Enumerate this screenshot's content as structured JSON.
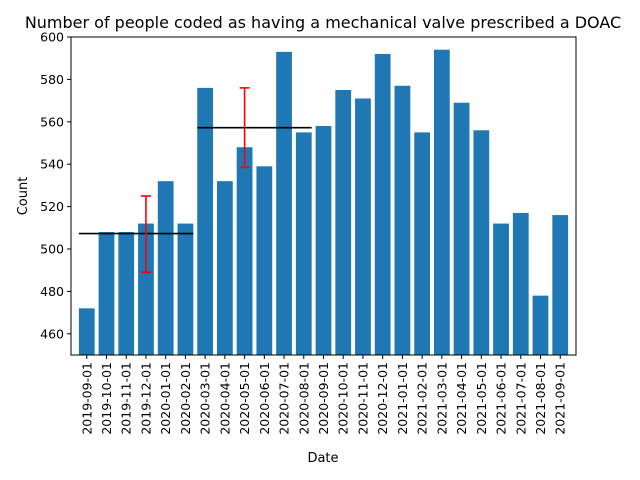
{
  "chart_data": {
    "type": "bar",
    "title": "Number of people coded as having a mechanical valve prescribed a DOAC",
    "xlabel": "Date",
    "ylabel": "Count",
    "ylim": [
      450,
      600
    ],
    "yticks": [
      460,
      480,
      500,
      520,
      540,
      560,
      580,
      600
    ],
    "bar_color": "#1f77b4",
    "categories": [
      "2019-09-01",
      "2019-10-01",
      "2019-11-01",
      "2019-12-01",
      "2020-01-01",
      "2020-02-01",
      "2020-03-01",
      "2020-04-01",
      "2020-05-01",
      "2020-06-01",
      "2020-07-01",
      "2020-08-01",
      "2020-09-01",
      "2020-10-01",
      "2020-11-01",
      "2020-12-01",
      "2021-01-01",
      "2021-02-01",
      "2021-03-01",
      "2021-04-01",
      "2021-05-01",
      "2021-06-01",
      "2021-07-01",
      "2021-08-01",
      "2021-09-01"
    ],
    "values": [
      472,
      508,
      508,
      512,
      532,
      512,
      576,
      532,
      548,
      539,
      593,
      555,
      558,
      575,
      571,
      592,
      577,
      555,
      594,
      569,
      556,
      512,
      517,
      478,
      516
    ],
    "mean_lines": [
      {
        "from": "2019-09-01",
        "to": "2020-02-01",
        "y": 507.3,
        "color": "#000000"
      },
      {
        "from": "2020-03-01",
        "to": "2020-08-01",
        "y": 557.2,
        "color": "#000000"
      }
    ],
    "error_bars": [
      {
        "x": "2019-12-01",
        "y": 507.3,
        "low": 489,
        "high": 525,
        "color": "#ff0000"
      },
      {
        "x": "2020-05-01",
        "y": 557.2,
        "low": 538.5,
        "high": 576,
        "color": "#ff0000"
      }
    ]
  }
}
